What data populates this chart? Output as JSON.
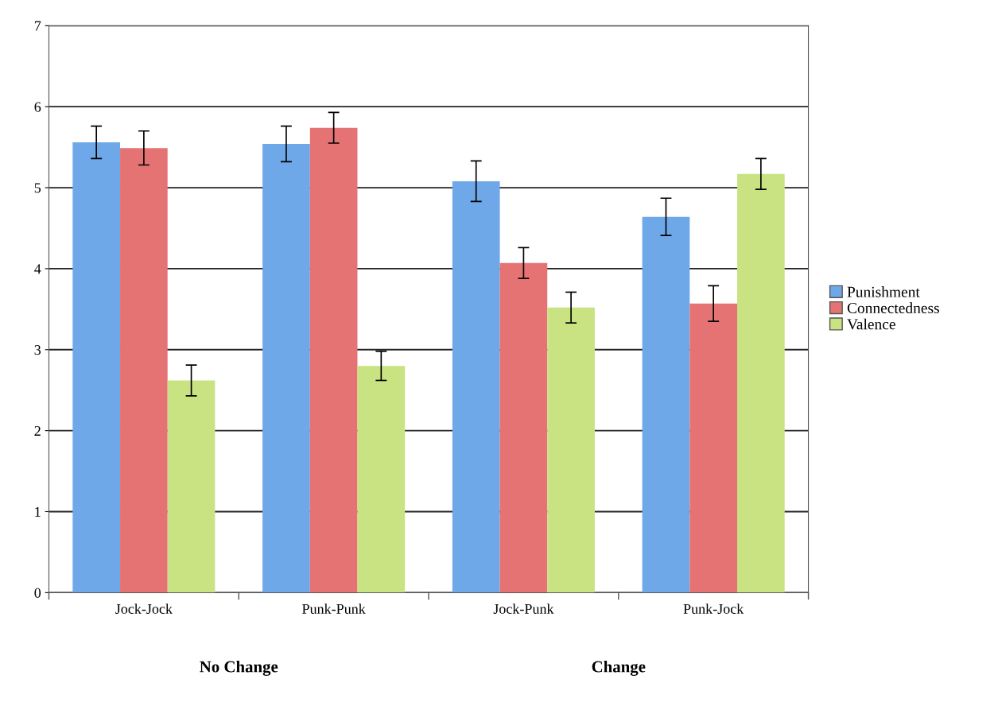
{
  "chart_data": {
    "type": "bar",
    "categories": [
      "Jock-Jock",
      "Punk-Punk",
      "Jock-Punk",
      "Punk-Jock"
    ],
    "series": [
      {
        "name": "Punishment",
        "color": "#6fa8e8",
        "values": [
          5.56,
          5.54,
          5.08,
          4.64
        ],
        "errors": [
          0.2,
          0.22,
          0.25,
          0.23
        ]
      },
      {
        "name": "Connectedness",
        "color": "#e57373",
        "values": [
          5.49,
          5.74,
          4.07,
          3.57
        ],
        "errors": [
          0.21,
          0.19,
          0.19,
          0.22
        ]
      },
      {
        "name": "Valence",
        "color": "#c9e382",
        "values": [
          2.62,
          2.8,
          3.52,
          5.17
        ],
        "errors": [
          0.19,
          0.18,
          0.19,
          0.19
        ]
      }
    ],
    "annotations": [
      "No Change",
      "Change"
    ],
    "ylim": [
      0,
      7
    ],
    "yticks": [
      0,
      1,
      2,
      3,
      4,
      5,
      6,
      7
    ],
    "grid": "y",
    "legend": "right"
  }
}
